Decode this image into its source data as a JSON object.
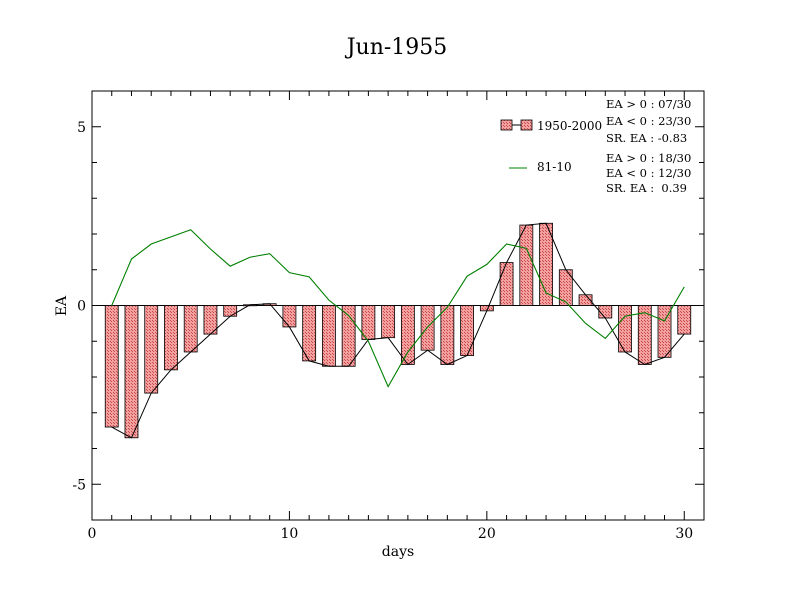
{
  "chart_data": {
    "type": "bar",
    "title": "Jun-1955",
    "xlabel": "days",
    "ylabel": "EA",
    "xlim": [
      0,
      31
    ],
    "ylim": [
      -6,
      6
    ],
    "xticks": [
      0,
      10,
      20,
      30
    ],
    "yticks": [
      -5,
      0,
      5
    ],
    "x": [
      1,
      2,
      3,
      4,
      5,
      6,
      7,
      8,
      9,
      10,
      11,
      12,
      13,
      14,
      15,
      16,
      17,
      18,
      19,
      20,
      21,
      22,
      23,
      24,
      25,
      26,
      27,
      28,
      29,
      30
    ],
    "series": [
      {
        "name": "1950-2000",
        "style": "bar-with-line",
        "color": "#e87878",
        "values": [
          -3.4,
          -3.7,
          -2.45,
          -1.8,
          -1.3,
          -0.8,
          -0.3,
          0.02,
          0.05,
          -0.6,
          -1.55,
          -1.7,
          -1.7,
          -0.95,
          -0.9,
          -1.65,
          -1.25,
          -1.65,
          -1.4,
          -0.15,
          1.2,
          2.25,
          2.3,
          1.0,
          0.3,
          -0.35,
          -1.3,
          -1.65,
          -1.45,
          -0.8
        ]
      },
      {
        "name": "81-10",
        "style": "line",
        "color": "#008000",
        "values": [
          0.0,
          1.3,
          1.72,
          1.92,
          2.12,
          1.58,
          1.1,
          1.35,
          1.45,
          0.92,
          0.8,
          0.15,
          -0.28,
          -1.0,
          -2.27,
          -1.3,
          -0.6,
          -0.05,
          0.82,
          1.15,
          1.72,
          1.6,
          0.35,
          0.1,
          -0.5,
          -0.92,
          -0.3,
          -0.2,
          -0.43,
          0.52
        ]
      }
    ],
    "legend_position": "top-right",
    "stats": [
      [
        "EA > 0 : 07/30",
        "EA < 0 : 23/30",
        "SR. EA : -0.83"
      ],
      [
        "EA > 0 : 18/30",
        "EA < 0 : 12/30",
        "SR. EA :  0.39"
      ]
    ]
  }
}
